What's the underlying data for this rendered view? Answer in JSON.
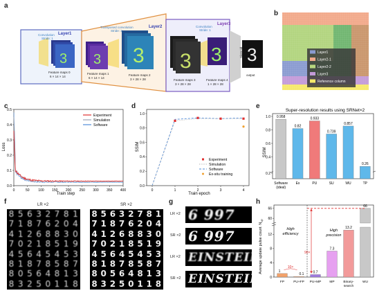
{
  "panel_labels": {
    "a": "a",
    "b": "b",
    "c": "c",
    "d": "d",
    "e": "e",
    "f": "f",
    "g": "g",
    "h": "h"
  },
  "panel_a": {
    "layer1": {
      "name": "Layer1",
      "op": "Convolution",
      "stride": "Stride: 1",
      "fm": "Feature maps 0",
      "dims": "6 × 14 × 14"
    },
    "layer2": {
      "name": "Layer2",
      "op": "Transposed convolution",
      "stride": "Stride: 2",
      "fm1": "Feature maps 1",
      "dims1": "6 × 14 × 14",
      "fm2": "Feature maps 2",
      "dims2": "3 × 28 × 28"
    },
    "layer3": {
      "name": "Layer3",
      "op": "Convolution",
      "stride": "Stride: 1",
      "fm3": "Feature maps 3",
      "dims3": "3 × 28 × 28",
      "fm4": "Feature maps 4",
      "dims4": "1 × 28 × 28"
    },
    "sigmoid": "Sigmoid",
    "output": "output"
  },
  "panel_b": {
    "legend": [
      "Layer1",
      "Layer2-1",
      "Layer2-2",
      "Layer3",
      "Reference column"
    ],
    "colors": {
      "Layer1": "#8a9bd0",
      "Layer2-1": "#f2a98a",
      "Layer2-2": "#b8d77f",
      "Layer3": "#c39ad8",
      "Reference column": "#f6e96a",
      "bg": "#6fb56f"
    }
  },
  "panel_c": {
    "xlabel": "Train step",
    "ylabel": "Loss",
    "xticks": [
      "0",
      "50",
      "100",
      "150",
      "200",
      "250",
      "300",
      "350",
      "400"
    ],
    "yticks": [
      "0.0",
      "0.1",
      "0.2",
      "0.3",
      "0.4",
      "0.5"
    ],
    "legend": [
      "Experiment",
      "Simulation",
      "Software"
    ],
    "colors": {
      "Experiment": "#e03030",
      "Simulation": "#9aa3b5",
      "Software": "#4f8bd9"
    }
  },
  "panel_d": {
    "xlabel": "Train epoch",
    "ylabel": "SSIM",
    "xticks": [
      "0",
      "1",
      "2",
      "3",
      "4"
    ],
    "yticks": [
      "0.0",
      "0.2",
      "0.4",
      "0.6",
      "0.8",
      "1.0"
    ],
    "legend": [
      "Experiment",
      "Simulation",
      "Software",
      "Ex-situ training"
    ],
    "colors": {
      "Experiment": "#e03030",
      "Simulation": "#aaaaaa",
      "Software": "#4f8bd9",
      "Ex-situ training": "#f0a030"
    }
  },
  "panel_e": {
    "title": "Super-resolution results using SRNet×2",
    "ylabel": "SSIM",
    "yticks": [
      "0.2",
      "0.4",
      "0.6",
      "0.8",
      "1.0"
    ],
    "categories": [
      "Software\n(ideal)",
      "Ex",
      "PU",
      "SU",
      "WU",
      "TP"
    ],
    "cat_line1": [
      "Software",
      "Ex",
      "PU",
      "SU",
      "WU",
      "TP"
    ],
    "cat_line2": [
      "(ideal)",
      "",
      "",
      "",
      "",
      ""
    ],
    "values": [
      0.958,
      0.82,
      0.933,
      0.739,
      0.857,
      0.26
    ],
    "value_labels": [
      "0.958",
      "0.82",
      "0.933",
      "0.739",
      "0.857",
      "0.26"
    ],
    "colors": [
      "#c8c8c8",
      "#5fb8ea",
      "#f07a7a",
      "#5fb8ea",
      "#5fb8ea",
      "#5fb8ea"
    ]
  },
  "panel_f": {
    "lr_title": "LR ×2",
    "sr_title": "SR ×2",
    "rows": [
      "8 5 6 3 2 7 8 1",
      "7 1 8 7 6 2 0 4",
      "4 1 2 6 8 8 3 0",
      "7 0 2 1 8 5 1 9",
      "4 5 6 4 5 4 5 3",
      "8 1 8 7 8 5 8 7",
      "8 0 5 6 4 8 1 3",
      "8 3 2 5 0 1 1 8"
    ]
  },
  "panel_g": {
    "row_labels": [
      "LR ×2",
      "SR ×2",
      "LR ×2",
      "SR ×2"
    ],
    "texts": [
      "6 997",
      "6 997",
      "EINSTEIN",
      "EINSTEIN"
    ]
  },
  "panel_h": {
    "ylabel": "Average update pulse count",
    "ylabel_sub": "N",
    "ylabel_subsub": "up",
    "yticks": [
      "0",
      "4",
      "8",
      "12",
      "60",
      "66"
    ],
    "categories": [
      "FP",
      "PU+FP",
      "PU+MP",
      "MP",
      "Binary-\nsearch",
      "WU"
    ],
    "cat_line1": [
      "FP",
      "PU+FP",
      "PU+MP",
      "MP",
      "Binary-",
      "WU"
    ],
    "cat_line2": [
      "",
      "",
      "",
      "",
      "search",
      ""
    ],
    "values": [
      1,
      0.1,
      0.7,
      7.3,
      13.2,
      66
    ],
    "value_labels": [
      "1",
      "0.1",
      "0.7",
      "7.3",
      "13.2",
      "66"
    ],
    "colors": [
      "#f2a26b",
      "#f2a26b",
      "#a07be0",
      "#e6a0f0",
      "#f29a9a",
      "#c8c8c8"
    ],
    "annotations": {
      "ten_x": "10×",
      "ninety_x": "90×",
      "high_efficiency": "High\nefficiency",
      "high_precision": "High\nprecision",
      "he1": "High",
      "he2": "efficiency",
      "hp1": "High",
      "hp2": "precision"
    }
  }
}
